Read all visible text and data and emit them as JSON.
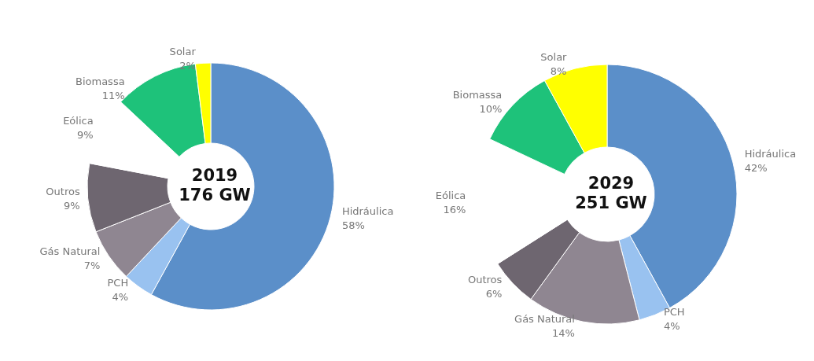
{
  "chart_data": [
    {
      "type": "donut",
      "title": "2019",
      "subtitle": "176 GW",
      "categories": [
        "Hidráulica",
        "PCH",
        "Gás Natural",
        "Outros",
        "Eólica",
        "Biomassa",
        "Solar"
      ],
      "values": [
        58,
        4,
        7,
        9,
        9,
        11,
        2
      ],
      "value_labels": [
        "58%",
        "4%",
        "7%",
        "9%",
        "9%",
        "11%",
        "2%"
      ],
      "colors": [
        "#5b8fc9",
        "#99c2f0",
        "#8f8691",
        "#6e6670",
        "#ffffff",
        "#1ec27a",
        "#ffff00"
      ],
      "legend": false
    },
    {
      "type": "donut",
      "title": "2029",
      "subtitle": "251 GW",
      "categories": [
        "Hidráulica",
        "PCH",
        "Gás Natural",
        "Outros",
        "Eólica",
        "Biomassa",
        "Solar"
      ],
      "values": [
        42,
        4,
        14,
        6,
        16,
        10,
        8
      ],
      "value_labels": [
        "42%",
        "4%",
        "14%",
        "6%",
        "16%",
        "10%",
        "8%"
      ],
      "colors": [
        "#5b8fc9",
        "#99c2f0",
        "#8f8691",
        "#6e6670",
        "#ffffff",
        "#1ec27a",
        "#ffff00"
      ],
      "legend": false
    }
  ]
}
